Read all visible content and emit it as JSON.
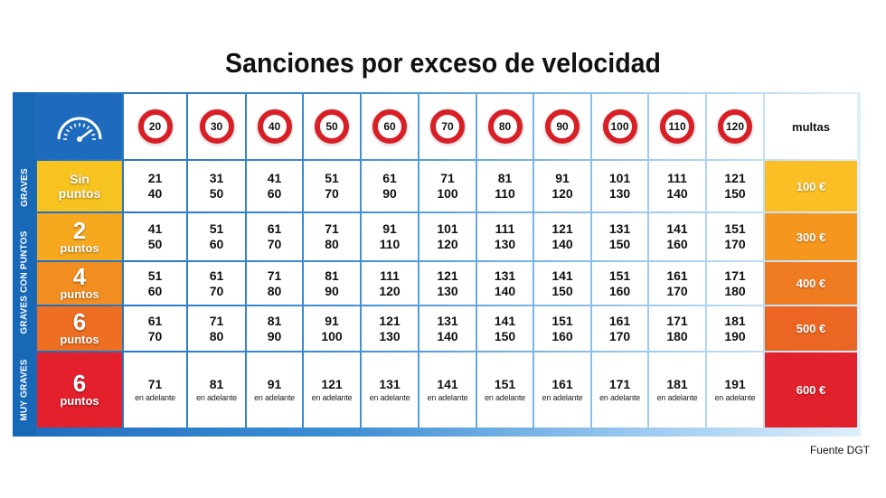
{
  "title": "Sanciones por exceso de velocidad",
  "icon": "speedometer-icon",
  "side_labels": [
    "GRAVES",
    "GRAVES CON PUNTOS",
    "MUY GRAVES"
  ],
  "limits": [
    "20",
    "30",
    "40",
    "50",
    "60",
    "70",
    "80",
    "90",
    "100",
    "110",
    "120"
  ],
  "fine_header": "multas",
  "rows": [
    {
      "cat": [
        "Sin",
        "puntos"
      ],
      "fine": "100 €",
      "cells": [
        [
          "21",
          "40"
        ],
        [
          "31",
          "50"
        ],
        [
          "41",
          "60"
        ],
        [
          "51",
          "70"
        ],
        [
          "61",
          "90"
        ],
        [
          "71",
          "100"
        ],
        [
          "81",
          "110"
        ],
        [
          "91",
          "120"
        ],
        [
          "101",
          "130"
        ],
        [
          "111",
          "140"
        ],
        [
          "121",
          "150"
        ]
      ]
    },
    {
      "cat": [
        "2",
        "puntos"
      ],
      "fine": "300 €",
      "cells": [
        [
          "41",
          "50"
        ],
        [
          "51",
          "60"
        ],
        [
          "61",
          "70"
        ],
        [
          "71",
          "80"
        ],
        [
          "91",
          "110"
        ],
        [
          "101",
          "120"
        ],
        [
          "111",
          "130"
        ],
        [
          "121",
          "140"
        ],
        [
          "131",
          "150"
        ],
        [
          "141",
          "160"
        ],
        [
          "151",
          "170"
        ]
      ]
    },
    {
      "cat": [
        "4",
        "puntos"
      ],
      "fine": "400 €",
      "cells": [
        [
          "51",
          "60"
        ],
        [
          "61",
          "70"
        ],
        [
          "71",
          "80"
        ],
        [
          "81",
          "90"
        ],
        [
          "111",
          "120"
        ],
        [
          "121",
          "130"
        ],
        [
          "131",
          "140"
        ],
        [
          "141",
          "150"
        ],
        [
          "151",
          "160"
        ],
        [
          "161",
          "170"
        ],
        [
          "171",
          "180"
        ]
      ]
    },
    {
      "cat": [
        "6",
        "puntos"
      ],
      "fine": "500 €",
      "cells": [
        [
          "61",
          "70"
        ],
        [
          "71",
          "80"
        ],
        [
          "81",
          "90"
        ],
        [
          "91",
          "100"
        ],
        [
          "121",
          "130"
        ],
        [
          "131",
          "140"
        ],
        [
          "141",
          "150"
        ],
        [
          "151",
          "160"
        ],
        [
          "161",
          "170"
        ],
        [
          "171",
          "180"
        ],
        [
          "181",
          "190"
        ]
      ]
    },
    {
      "cat": [
        "6",
        "puntos"
      ],
      "fine": "600 €",
      "cells": [
        [
          "71",
          "en adelante"
        ],
        [
          "81",
          "en adelante"
        ],
        [
          "91",
          "en adelante"
        ],
        [
          "121",
          "en adelante"
        ],
        [
          "131",
          "en adelante"
        ],
        [
          "141",
          "en adelante"
        ],
        [
          "151",
          "en adelante"
        ],
        [
          "161",
          "en adelante"
        ],
        [
          "171",
          "en adelante"
        ],
        [
          "181",
          "en adelante"
        ],
        [
          "191",
          "en adelante"
        ]
      ]
    }
  ],
  "colors": {
    "cat": [
      "#f7c31f",
      "#f6a81f",
      "#f28e21",
      "#ee6f22",
      "#e3202b"
    ],
    "fine": [
      "#fbbf25",
      "#f5961f",
      "#f07c22",
      "#ec6623",
      "#e1222c"
    ],
    "sign_ring": "#d91f26",
    "frame": "#1e6bbd"
  },
  "source": "Fuente DGT"
}
